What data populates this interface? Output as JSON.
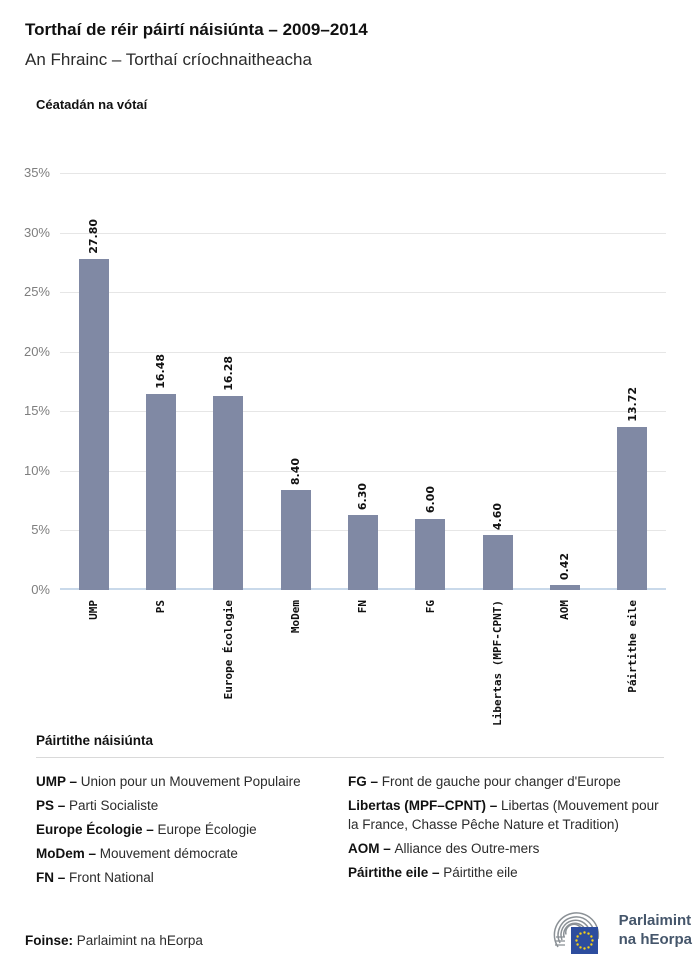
{
  "header": {
    "title": "Torthaí de réir páirtí náisiúnta – 2009–2014",
    "subtitle": "An Fhrainc – Torthaí críochnaitheacha"
  },
  "chart_data": {
    "type": "bar",
    "title": "Céatadán na vótaí",
    "ylabel": "Céatadán na vótaí",
    "xlabel": "",
    "categories": [
      "UMP",
      "PS",
      "Europe Écologie",
      "MoDem",
      "FN",
      "FG",
      "Libertas (MPF-CPNT)",
      "AOM",
      "Páirtithe eile"
    ],
    "values": [
      27.8,
      16.48,
      16.28,
      8.4,
      6.3,
      6.0,
      4.6,
      0.42,
      13.72
    ],
    "value_labels": [
      "27.80",
      "16.48",
      "16.28",
      "8.40",
      "6.30",
      "6.00",
      "4.60",
      "0.42",
      "13.72"
    ],
    "ylim": [
      0,
      35
    ],
    "ytick_step": 5,
    "ytick_suffix": "%",
    "grid": true,
    "legend_position": "none",
    "bar_color": "#8089a4",
    "baseline_color": "#c9d9ea",
    "gridline_color": "#e6e6e6"
  },
  "legend": {
    "title": "Páirtithe náisiúnta",
    "columns": [
      [
        {
          "abbr": "UMP –",
          "name": "Union pour un Mouvement Populaire"
        },
        {
          "abbr": "PS –",
          "name": "Parti Socialiste"
        },
        {
          "abbr": "Europe Écologie –",
          "name": "Europe Écologie"
        },
        {
          "abbr": "MoDem –",
          "name": "Mouvement démocrate"
        },
        {
          "abbr": "FN –",
          "name": "Front National"
        }
      ],
      [
        {
          "abbr": "FG –",
          "name": "Front de gauche pour changer d'Europe"
        },
        {
          "abbr": "Libertas (MPF–CPNT) –",
          "name": "Libertas (Mouvement pour la France, Chasse Pêche Nature et Tradition)"
        },
        {
          "abbr": "AOM –",
          "name": "Alliance des Outre-mers"
        },
        {
          "abbr": "Páirtithe eile –",
          "name": "Páirtithe eile"
        }
      ]
    ]
  },
  "footer": {
    "source_label": "Foinse:",
    "source_value": "Parlaimint na hEorpa",
    "logo_line1": "Parlaimint",
    "logo_line2": "na hEorpa",
    "logo_colors": {
      "arcs": "#8b9196",
      "flag": "#2d4d9e",
      "stars": "#f7d116",
      "text": "#45566b"
    }
  }
}
